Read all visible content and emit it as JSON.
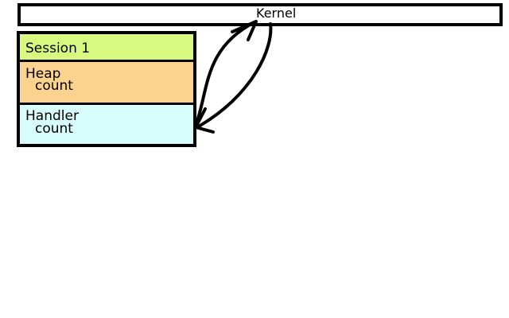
{
  "kernel": {
    "label": "Kernel"
  },
  "session": {
    "title": "Session 1",
    "sections": [
      {
        "title": "Heap",
        "sub": "count",
        "color": "#fbd28e"
      },
      {
        "title": "Handler",
        "sub": "count",
        "color": "#d8fdfd"
      }
    ],
    "header_color": "#d7f980"
  }
}
